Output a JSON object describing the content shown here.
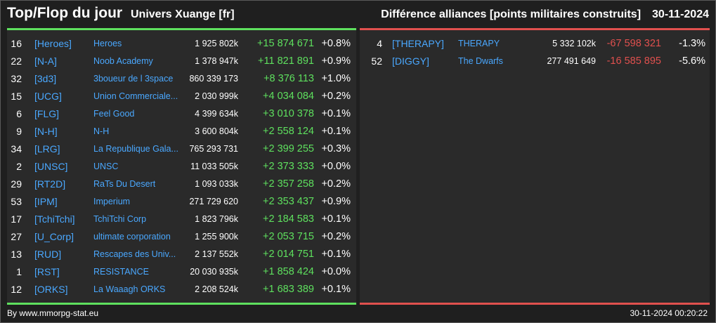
{
  "header": {
    "title": "Top/Flop du jour",
    "universe": "Univers Xuange [fr]",
    "metric": "Différence alliances [points militaires construits]",
    "date": "30-11-2024"
  },
  "colors": {
    "positive": "#5ee05e",
    "negative": "#e0504e",
    "link": "#4aa8ff",
    "background": "#1f1f1f",
    "panel": "#2a2a2a"
  },
  "top": [
    {
      "rank": "16",
      "tag": "[Heroes]",
      "name": "Heroes",
      "points": "1 925 802k",
      "diff": "+15 874 671",
      "pct": "+0.8%"
    },
    {
      "rank": "22",
      "tag": "[N-A]",
      "name": "Noob Academy",
      "points": "1 378 947k",
      "diff": "+11 821 891",
      "pct": "+0.9%"
    },
    {
      "rank": "32",
      "tag": "[3d3]",
      "name": "3boueur de l 3space",
      "points": "860 339 173",
      "diff": "+8 376 113",
      "pct": "+1.0%"
    },
    {
      "rank": "15",
      "tag": "[UCG]",
      "name": "Union Commerciale...",
      "points": "2 030 999k",
      "diff": "+4 034 084",
      "pct": "+0.2%"
    },
    {
      "rank": "6",
      "tag": "[FLG]",
      "name": "Feel Good",
      "points": "4 399 634k",
      "diff": "+3 010 378",
      "pct": "+0.1%"
    },
    {
      "rank": "9",
      "tag": "[N-H]",
      "name": "N-H",
      "points": "3 600 804k",
      "diff": "+2 558 124",
      "pct": "+0.1%"
    },
    {
      "rank": "34",
      "tag": "[LRG]",
      "name": "La Republique Gala...",
      "points": "765 293 731",
      "diff": "+2 399 255",
      "pct": "+0.3%"
    },
    {
      "rank": "2",
      "tag": "[UNSC]",
      "name": "UNSC",
      "points": "11 033 505k",
      "diff": "+2 373 333",
      "pct": "+0.0%"
    },
    {
      "rank": "29",
      "tag": "[RT2D]",
      "name": "RaTs Du Desert",
      "points": "1 093 033k",
      "diff": "+2 357 258",
      "pct": "+0.2%"
    },
    {
      "rank": "53",
      "tag": "[IPM]",
      "name": "Imperium",
      "points": "271 729 620",
      "diff": "+2 353 437",
      "pct": "+0.9%"
    },
    {
      "rank": "17",
      "tag": "[TchiTchi]",
      "name": "TchiTchi Corp",
      "points": "1 823 796k",
      "diff": "+2 184 583",
      "pct": "+0.1%"
    },
    {
      "rank": "27",
      "tag": "[U_Corp]",
      "name": "ultimate corporation",
      "points": "1 255 900k",
      "diff": "+2 053 715",
      "pct": "+0.2%"
    },
    {
      "rank": "13",
      "tag": "[RUD]",
      "name": "Rescapes des Univ...",
      "points": "2 137 552k",
      "diff": "+2 014 751",
      "pct": "+0.1%"
    },
    {
      "rank": "1",
      "tag": "[RST]",
      "name": "RESISTANCE",
      "points": "20 030 935k",
      "diff": "+1 858 424",
      "pct": "+0.0%"
    },
    {
      "rank": "12",
      "tag": "[ORKS]",
      "name": "La Waaagh ORKS",
      "points": "2 208 524k",
      "diff": "+1 683 389",
      "pct": "+0.1%"
    }
  ],
  "flop": [
    {
      "rank": "4",
      "tag": "[THERAPY]",
      "name": "THERAPY",
      "points": "5 332 102k",
      "diff": "-67 598 321",
      "pct": "-1.3%"
    },
    {
      "rank": "52",
      "tag": "[DIGGY]",
      "name": "The Dwarfs",
      "points": "277 491 649",
      "diff": "-16 585 895",
      "pct": "-5.6%"
    }
  ],
  "footer": {
    "source": "By www.mmorpg-stat.eu",
    "timestamp": "30-11-2024 00:20:22"
  }
}
